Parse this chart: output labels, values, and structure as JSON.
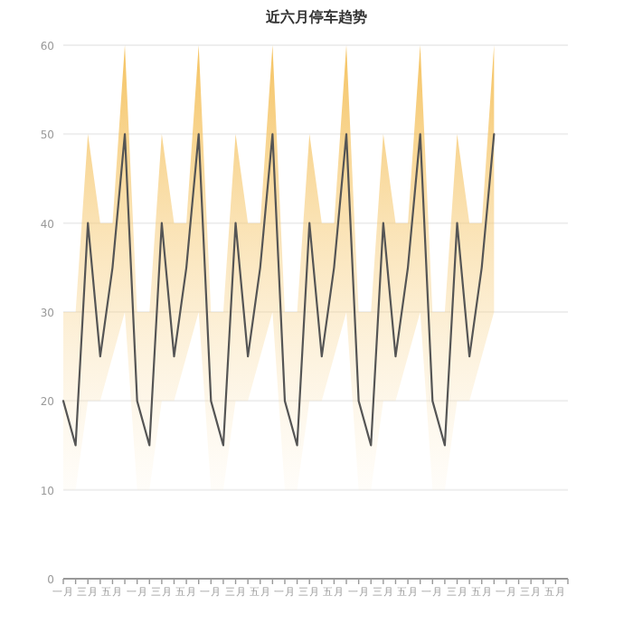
{
  "chart_data": {
    "type": "line",
    "title": "近六月停车趋势",
    "categories": [
      "一月",
      null,
      "三月",
      null,
      "五月",
      null,
      "一月",
      null,
      "三月",
      null,
      "五月",
      null,
      "一月",
      null,
      "三月",
      null,
      "五月",
      null,
      "一月",
      null,
      "三月",
      null,
      "五月",
      null,
      "一月",
      null,
      "三月",
      null,
      "五月",
      null,
      "一月",
      null,
      "三月",
      null,
      "五月",
      null,
      "一月",
      null,
      "三月",
      null,
      "五月",
      null
    ],
    "series": [
      {
        "color": "#555555",
        "values": [
          20,
          15,
          40,
          25,
          35,
          50,
          20,
          15,
          40,
          25,
          35,
          50,
          20,
          15,
          40,
          25,
          35,
          50,
          20,
          15,
          40,
          25,
          35,
          50,
          20,
          15,
          40,
          25,
          35,
          50,
          20,
          15,
          40,
          25,
          35,
          50,
          null,
          null,
          null,
          null,
          null,
          null
        ],
        "lower": [
          10,
          10,
          20,
          20,
          25,
          30,
          10,
          10,
          20,
          20,
          25,
          30,
          10,
          10,
          20,
          20,
          25,
          30,
          10,
          10,
          20,
          20,
          25,
          30,
          10,
          10,
          20,
          20,
          25,
          30,
          10,
          10,
          20,
          20,
          25,
          30,
          null,
          null,
          null,
          null,
          null,
          null
        ],
        "upper": [
          30,
          30,
          50,
          40,
          40,
          60,
          30,
          30,
          50,
          40,
          40,
          60,
          30,
          30,
          50,
          40,
          40,
          60,
          30,
          30,
          50,
          40,
          40,
          60,
          30,
          30,
          50,
          40,
          40,
          60,
          30,
          30,
          50,
          40,
          40,
          60,
          null,
          null,
          null,
          null,
          null,
          null
        ]
      }
    ],
    "ylim": [
      0,
      60
    ],
    "yticks": [
      0,
      10,
      20,
      30,
      40,
      50,
      60
    ],
    "grid": "y",
    "marker": "none",
    "line_style": "solid"
  }
}
